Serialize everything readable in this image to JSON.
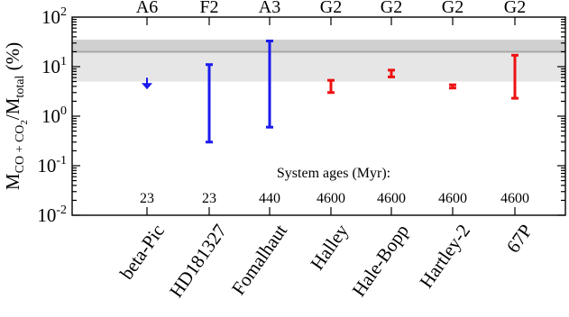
{
  "chart_data": {
    "type": "errorbar",
    "y_scale": "log",
    "ylim": [
      0.01,
      100
    ],
    "y_ticks": [
      {
        "value": 100,
        "base": "10",
        "exp": "2"
      },
      {
        "value": 10,
        "base": "10",
        "exp": "1"
      },
      {
        "value": 1,
        "base": "10",
        "exp": "0"
      },
      {
        "value": 0.1,
        "base": "10",
        "exp": "-1"
      },
      {
        "value": 0.01,
        "base": "10",
        "exp": "-2"
      }
    ],
    "ylabel": {
      "m1": "M",
      "sub1": "CO + CO",
      "sub1_sub": "2",
      "slash": "/M",
      "sub2": "total",
      "unit": " (%)"
    },
    "categories": [
      "beta-Pic",
      "HD181327",
      "Fomalhaut",
      "Halley",
      "Hale-Bopp",
      "Hartley-2",
      "67P"
    ],
    "spectral_types": [
      "A6",
      "F2",
      "A3",
      "G2",
      "G2",
      "G2",
      "G2"
    ],
    "ages_label": "System ages (Myr):",
    "ages": [
      "23",
      "23",
      "440",
      "4600",
      "4600",
      "4600",
      "4600"
    ],
    "colors": {
      "debris_disk": "#1a1aee",
      "comet": "#ee1111",
      "band_outer": "#e6e6e6",
      "band_inner": "#d0d0d0",
      "band_line": "#a8a8a8"
    },
    "groups": [
      "debris_disk",
      "debris_disk",
      "debris_disk",
      "comet",
      "comet",
      "comet",
      "comet"
    ],
    "points": [
      {
        "name": "beta-Pic",
        "upper_limit": 5.5
      },
      {
        "name": "HD181327",
        "low": 0.3,
        "high": 11
      },
      {
        "name": "Fomalhaut",
        "low": 0.6,
        "high": 33
      },
      {
        "name": "Halley",
        "low": 3.0,
        "high": 5.3
      },
      {
        "name": "Hale-Bopp",
        "low": 6.2,
        "high": 8.5
      },
      {
        "name": "Hartley-2",
        "low": 3.7,
        "high": 4.3
      },
      {
        "name": "67P",
        "low": 2.3,
        "high": 17
      }
    ],
    "bands": {
      "outer": [
        5,
        35
      ],
      "inner": [
        20,
        35
      ],
      "line": 20
    }
  }
}
